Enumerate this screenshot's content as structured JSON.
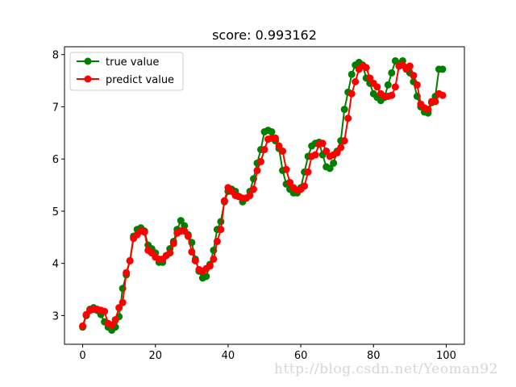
{
  "watermark": "http://blog.csdn.net/Yeoman92",
  "chart_data": {
    "type": "line",
    "title": "score: 0.993162",
    "xlabel": "",
    "ylabel": "",
    "xlim": [
      -5,
      105
    ],
    "ylim": [
      2.45,
      8.15
    ],
    "xticks": [
      0,
      20,
      40,
      60,
      80,
      100
    ],
    "yticks": [
      3,
      4,
      5,
      6,
      7,
      8
    ],
    "grid": false,
    "legend_position": "top-left",
    "x": [
      0,
      1,
      2,
      3,
      4,
      5,
      6,
      7,
      8,
      9,
      10,
      11,
      12,
      13,
      14,
      15,
      16,
      17,
      18,
      19,
      20,
      21,
      22,
      23,
      24,
      25,
      26,
      27,
      28,
      29,
      30,
      31,
      32,
      33,
      34,
      35,
      36,
      37,
      38,
      39,
      40,
      41,
      42,
      43,
      44,
      45,
      46,
      47,
      48,
      49,
      50,
      51,
      52,
      53,
      54,
      55,
      56,
      57,
      58,
      59,
      60,
      61,
      62,
      63,
      64,
      65,
      66,
      67,
      68,
      69,
      70,
      71,
      72,
      73,
      74,
      75,
      76,
      77,
      78,
      79,
      80,
      81,
      82,
      83,
      84,
      85,
      86,
      87,
      88,
      89,
      90,
      91,
      92,
      93,
      94,
      95,
      96,
      97,
      98,
      99
    ],
    "series": [
      {
        "name": "true value",
        "color": "#008000",
        "values": [
          2.78,
          3.0,
          3.12,
          3.15,
          3.1,
          3.02,
          2.88,
          2.78,
          2.72,
          2.78,
          2.98,
          3.52,
          3.78,
          4.05,
          4.52,
          4.65,
          4.68,
          4.62,
          4.35,
          4.28,
          4.2,
          4.02,
          4.02,
          4.15,
          4.28,
          4.42,
          4.65,
          4.82,
          4.72,
          4.55,
          4.4,
          4.08,
          3.85,
          3.72,
          3.75,
          3.98,
          4.25,
          4.65,
          4.8,
          5.18,
          5.38,
          5.42,
          5.38,
          5.28,
          5.18,
          5.25,
          5.38,
          5.62,
          5.92,
          6.18,
          6.52,
          6.55,
          6.52,
          6.35,
          6.2,
          5.78,
          5.52,
          5.42,
          5.35,
          5.35,
          5.45,
          5.75,
          6.05,
          6.25,
          6.3,
          6.32,
          6.08,
          5.85,
          5.82,
          5.92,
          6.15,
          6.35,
          6.95,
          7.28,
          7.62,
          7.8,
          7.85,
          7.8,
          7.55,
          7.45,
          7.25,
          7.18,
          7.12,
          7.18,
          7.42,
          7.65,
          7.88,
          7.82,
          7.88,
          7.75,
          7.65,
          7.48,
          7.2,
          7.0,
          6.9,
          6.88,
          7.08,
          7.2,
          7.72,
          7.72
        ]
      },
      {
        "name": "predict value",
        "color": "#ff0000",
        "values": [
          2.8,
          3.02,
          3.1,
          3.12,
          3.12,
          3.1,
          3.08,
          2.85,
          2.82,
          2.92,
          3.15,
          3.25,
          3.82,
          4.05,
          4.48,
          4.55,
          4.62,
          4.6,
          4.25,
          4.2,
          4.12,
          4.08,
          4.08,
          4.15,
          4.2,
          4.38,
          4.58,
          4.62,
          4.62,
          4.52,
          4.22,
          4.05,
          3.88,
          3.85,
          3.9,
          3.95,
          4.08,
          4.42,
          4.65,
          5.2,
          5.45,
          5.38,
          5.3,
          5.28,
          5.25,
          5.25,
          5.3,
          5.42,
          5.78,
          5.95,
          6.18,
          6.38,
          6.4,
          6.4,
          6.25,
          6.15,
          5.8,
          5.55,
          5.45,
          5.4,
          5.42,
          5.48,
          5.75,
          6.05,
          6.08,
          6.28,
          6.3,
          6.15,
          6.05,
          6.08,
          6.12,
          6.22,
          6.35,
          6.78,
          7.25,
          7.48,
          7.72,
          7.78,
          7.75,
          7.55,
          7.45,
          7.38,
          7.25,
          7.2,
          7.2,
          7.22,
          7.38,
          7.78,
          7.8,
          7.72,
          7.78,
          7.6,
          7.42,
          7.05,
          6.98,
          6.95,
          7.1,
          7.1,
          7.25,
          7.22
        ]
      }
    ]
  }
}
